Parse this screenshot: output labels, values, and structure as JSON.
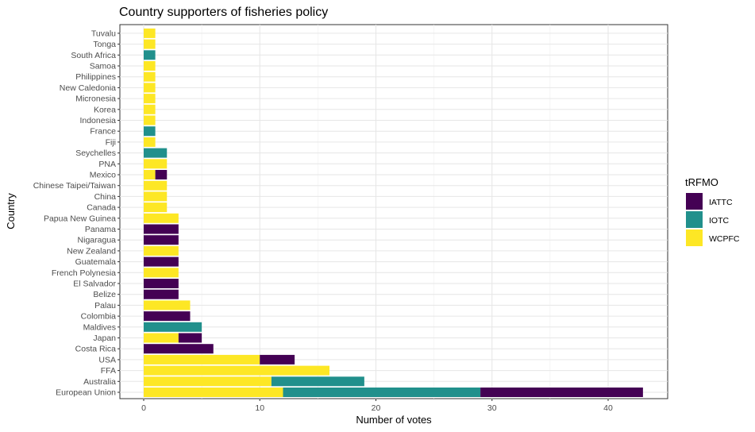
{
  "chart_data": {
    "type": "bar",
    "orientation": "horizontal",
    "stacked": true,
    "title": "Country supporters of fisheries policy",
    "xlabel": "Number of votes",
    "ylabel": "Country",
    "xlim": [
      0,
      45
    ],
    "x_ticks": [
      0,
      10,
      20,
      30,
      40
    ],
    "grid": true,
    "legend": {
      "title": "tRFMO",
      "position": "right"
    },
    "categories": [
      "European Union",
      "Australia",
      "FFA",
      "USA",
      "Costa Rica",
      "Japan",
      "Maldives",
      "Colombia",
      "Palau",
      "Belize",
      "El Salvador",
      "French Polynesia",
      "Guatemala",
      "New Zealand",
      "Nigaragua",
      "Panama",
      "Papua New Guinea",
      "Canada",
      "China",
      "Chinese Taipei/Taiwan",
      "Mexico",
      "PNA",
      "Seychelles",
      "Fiji",
      "France",
      "Indonesia",
      "Korea",
      "Micronesia",
      "New Caledonia",
      "Philippines",
      "Samoa",
      "South Africa",
      "Tonga",
      "Tuvalu"
    ],
    "series": [
      {
        "name": "WCPFC",
        "color": "#FDE725",
        "values": [
          12,
          11,
          16,
          10,
          0,
          3,
          0,
          0,
          4,
          0,
          0,
          3,
          0,
          3,
          0,
          0,
          3,
          2,
          2,
          2,
          1,
          2,
          0,
          1,
          0,
          1,
          1,
          1,
          1,
          1,
          1,
          0,
          1,
          1
        ]
      },
      {
        "name": "IOTC",
        "color": "#21908C",
        "values": [
          17,
          8,
          0,
          0,
          0,
          0,
          5,
          0,
          0,
          0,
          0,
          0,
          0,
          0,
          0,
          0,
          0,
          0,
          0,
          0,
          0,
          0,
          2,
          0,
          1,
          0,
          0,
          0,
          0,
          0,
          0,
          1,
          0,
          0
        ]
      },
      {
        "name": "IATTC",
        "color": "#440154",
        "values": [
          14,
          0,
          0,
          3,
          6,
          2,
          0,
          4,
          0,
          3,
          3,
          0,
          3,
          0,
          3,
          3,
          0,
          0,
          0,
          0,
          1,
          0,
          0,
          0,
          0,
          0,
          0,
          0,
          0,
          0,
          0,
          0,
          0,
          0
        ]
      }
    ],
    "legend_order": [
      "IATTC",
      "IOTC",
      "WCPFC"
    ]
  }
}
